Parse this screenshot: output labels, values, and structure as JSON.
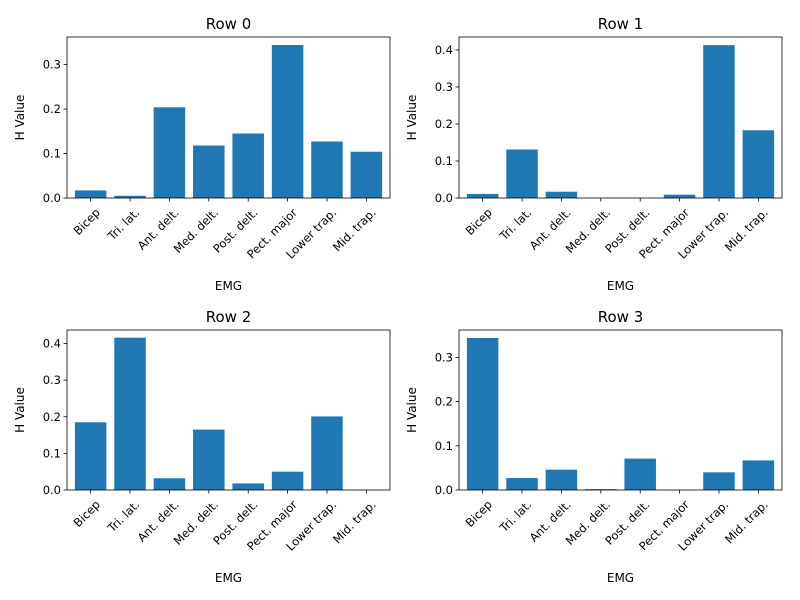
{
  "chart_data": [
    {
      "type": "bar",
      "title": "Row 0",
      "xlabel": "EMG",
      "ylabel": "H Value",
      "categories": [
        "Bicep",
        "Tri. lat.",
        "Ant. delt.",
        "Med. delt.",
        "Post. delt.",
        "Pect. major",
        "Lower trap.",
        "Mid. trap."
      ],
      "values": [
        0.017,
        0.005,
        0.204,
        0.118,
        0.145,
        0.344,
        0.127,
        0.104
      ],
      "ylim": [
        0,
        0.362
      ],
      "yticks": [
        "0.0",
        "0.1",
        "0.2",
        "0.3"
      ],
      "color": "#1f77b4"
    },
    {
      "type": "bar",
      "title": "Row 1",
      "xlabel": "EMG",
      "ylabel": "H Value",
      "categories": [
        "Bicep",
        "Tri. lat.",
        "Ant. delt.",
        "Med. delt.",
        "Post. delt.",
        "Pect. major",
        "Lower trap.",
        "Mid. trap."
      ],
      "values": [
        0.011,
        0.131,
        0.017,
        0.0,
        0.0,
        0.009,
        0.413,
        0.183
      ],
      "ylim": [
        0,
        0.435
      ],
      "yticks": [
        "0.0",
        "0.1",
        "0.2",
        "0.3",
        "0.4"
      ],
      "color": "#1f77b4"
    },
    {
      "type": "bar",
      "title": "Row 2",
      "xlabel": "EMG",
      "ylabel": "H Value",
      "categories": [
        "Bicep",
        "Tri. lat.",
        "Ant. delt.",
        "Med. delt.",
        "Post. delt.",
        "Pect. major",
        "Lower trap.",
        "Mid. trap."
      ],
      "values": [
        0.185,
        0.416,
        0.032,
        0.165,
        0.018,
        0.05,
        0.201,
        0.0
      ],
      "ylim": [
        0,
        0.437
      ],
      "yticks": [
        "0.0",
        "0.1",
        "0.2",
        "0.3",
        "0.4"
      ],
      "color": "#1f77b4"
    },
    {
      "type": "bar",
      "title": "Row 3",
      "xlabel": "EMG",
      "ylabel": "H Value",
      "categories": [
        "Bicep",
        "Tri. lat.",
        "Ant. delt.",
        "Med. delt.",
        "Post. delt.",
        "Pect. major",
        "Lower trap.",
        "Mid. trap."
      ],
      "values": [
        0.344,
        0.027,
        0.046,
        0.002,
        0.071,
        0.0,
        0.04,
        0.067
      ],
      "ylim": [
        0,
        0.362
      ],
      "yticks": [
        "0.0",
        "0.1",
        "0.2",
        "0.3"
      ],
      "color": "#1f77b4"
    }
  ]
}
